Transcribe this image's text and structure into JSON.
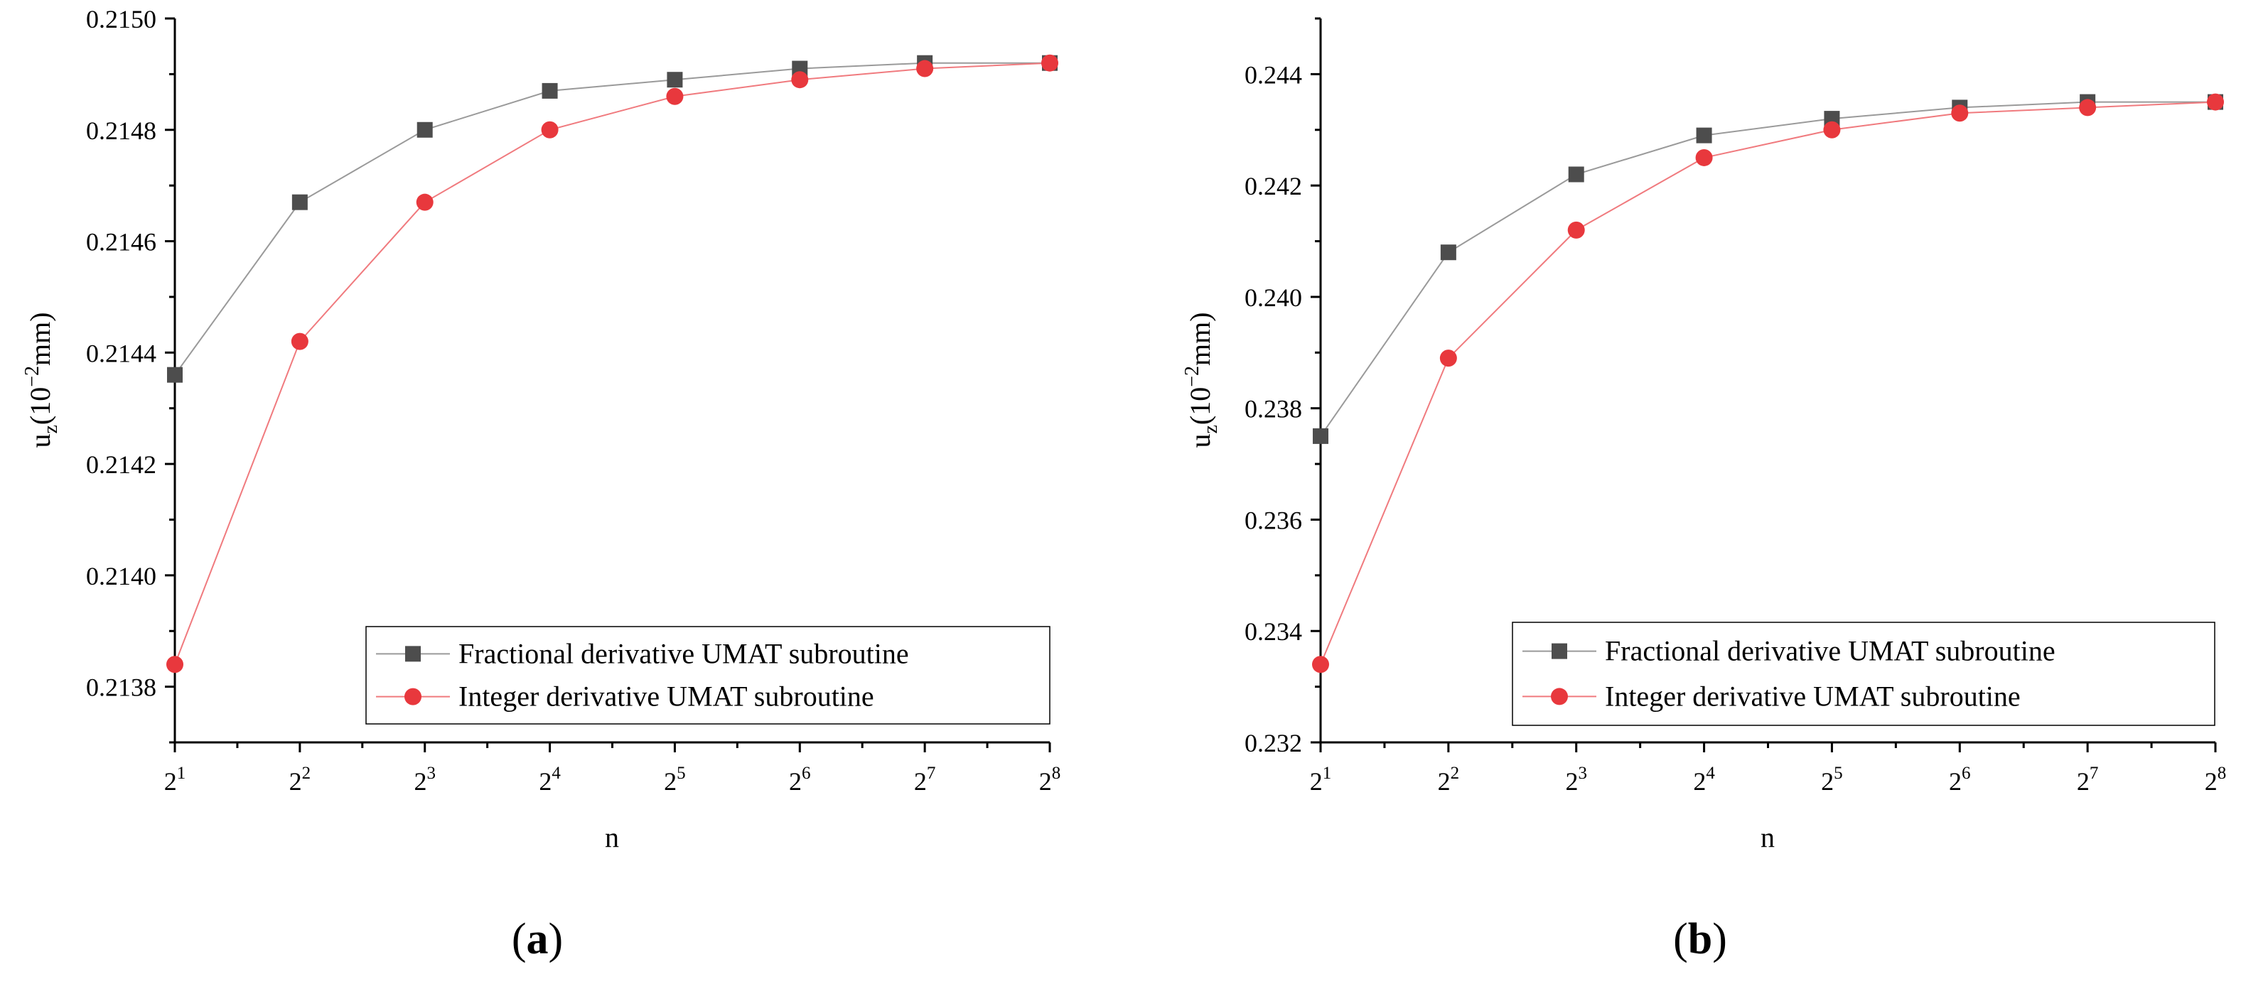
{
  "chart_data": [
    {
      "type": "line",
      "panel_label": "a",
      "title": "",
      "xlabel": "n",
      "ylabel": "u",
      "ylabel_sub": "z",
      "ylabel_unit_prefix": "(10",
      "ylabel_unit_exp": "−2",
      "ylabel_unit_suffix": "mm)",
      "x_base": "2",
      "x": [
        1,
        2,
        3,
        4,
        5,
        6,
        7,
        8
      ],
      "xlim": [
        1,
        8
      ],
      "ylim": [
        0.2137,
        0.215
      ],
      "yticks": [
        0.2138,
        0.214,
        0.2142,
        0.2144,
        0.2146,
        0.2148,
        0.215
      ],
      "ytick_labels": [
        "0.2138",
        "0.2140",
        "0.2142",
        "0.2144",
        "0.2146",
        "0.2148",
        "0.2150"
      ],
      "legend_position": "lower-right",
      "series": [
        {
          "name": "Fractional derivative UMAT subroutine",
          "marker": "square",
          "color": "#4d4d4d",
          "line_color": "#9a9a9a",
          "values": [
            0.21436,
            0.21467,
            0.2148,
            0.21487,
            0.21489,
            0.21491,
            0.21492,
            0.21492
          ]
        },
        {
          "name": "Integer derivative UMAT subroutine",
          "marker": "circle",
          "color": "#e8383d",
          "line_color": "#f07a7e",
          "values": [
            0.21384,
            0.21442,
            0.21467,
            0.2148,
            0.21486,
            0.21489,
            0.21491,
            0.21492
          ]
        }
      ]
    },
    {
      "type": "line",
      "panel_label": "b",
      "title": "",
      "xlabel": "n",
      "ylabel": "u",
      "ylabel_sub": "z",
      "ylabel_unit_prefix": "(10",
      "ylabel_unit_exp": "−2",
      "ylabel_unit_suffix": "mm)",
      "x_base": "2",
      "x": [
        1,
        2,
        3,
        4,
        5,
        6,
        7,
        8
      ],
      "xlim": [
        1,
        8
      ],
      "ylim": [
        0.232,
        0.245
      ],
      "yticks": [
        0.232,
        0.234,
        0.236,
        0.238,
        0.24,
        0.242,
        0.244
      ],
      "ytick_labels": [
        "0.232",
        "0.234",
        "0.236",
        "0.238",
        "0.240",
        "0.242",
        "0.244"
      ],
      "legend_position": "lower-right",
      "series": [
        {
          "name": "Fractional derivative UMAT subroutine",
          "marker": "square",
          "color": "#4d4d4d",
          "line_color": "#9a9a9a",
          "values": [
            0.2375,
            0.2408,
            0.2422,
            0.2429,
            0.2432,
            0.2434,
            0.2435,
            0.2435
          ]
        },
        {
          "name": "Integer derivative UMAT subroutine",
          "marker": "circle",
          "color": "#e8383d",
          "line_color": "#f07a7e",
          "values": [
            0.2334,
            0.2389,
            0.2412,
            0.2425,
            0.243,
            0.2433,
            0.2434,
            0.2435
          ]
        }
      ]
    }
  ]
}
